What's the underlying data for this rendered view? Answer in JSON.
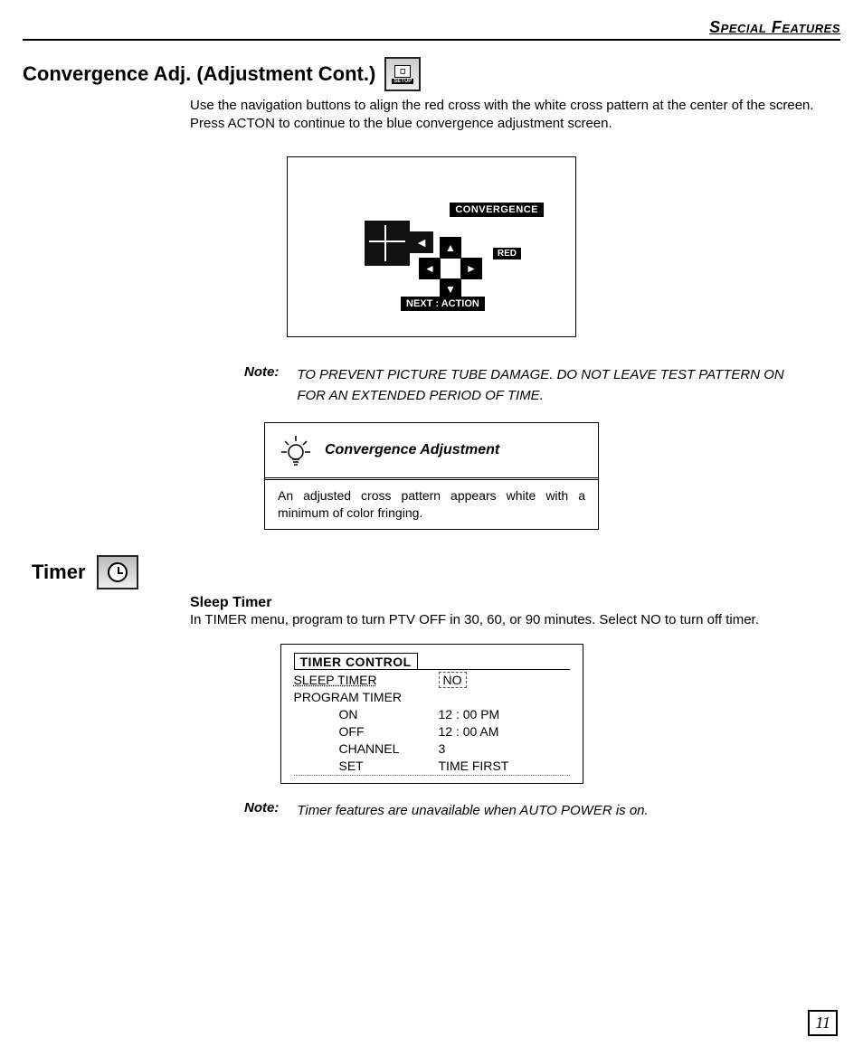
{
  "header": {
    "right": "Special Features"
  },
  "section1": {
    "title": "Convergence Adj. (Adjustment Cont.)",
    "icon_label": "SETUP",
    "para": "Use the navigation buttons to align the red cross with the white cross pattern at the center of the screen.  Press ACTON to continue to the blue convergence adjustment screen.",
    "fig": {
      "conv": "CONVERGENCE",
      "red": "RED",
      "next": "NEXT : ACTION"
    },
    "note_label": "Note:",
    "note_text": "TO PREVENT PICTURE TUBE DAMAGE. DO NOT LEAVE TEST PATTERN ON FOR AN EXTENDED PERIOD OF TIME.",
    "tip": {
      "title": "Convergence Adjustment",
      "body": "An adjusted cross pattern appears white with a minimum of color fringing."
    }
  },
  "section2": {
    "title": "Timer",
    "sub": "Sleep Timer",
    "para": "In TIMER menu, program to turn PTV OFF in 30, 60, or 90 minutes.  Select NO to turn off timer.",
    "table": {
      "header": "TIMER CONTROL",
      "rows": [
        {
          "label": "SLEEP TIMER",
          "value": "NO",
          "style": "sleep"
        },
        {
          "label": "PROGRAM TIMER",
          "value": ""
        },
        {
          "label": "ON",
          "value": "12 : 00  PM",
          "indent": true
        },
        {
          "label": "OFF",
          "value": "12 : 00  AM",
          "indent": true
        },
        {
          "label": "CHANNEL",
          "value": "3",
          "indent": true
        },
        {
          "label": "SET",
          "value": "TIME FIRST",
          "indent": true,
          "dot": true
        }
      ]
    },
    "note_label": "Note:",
    "note_text": "Timer features are unavailable when AUTO POWER is on."
  },
  "page_number": "11"
}
